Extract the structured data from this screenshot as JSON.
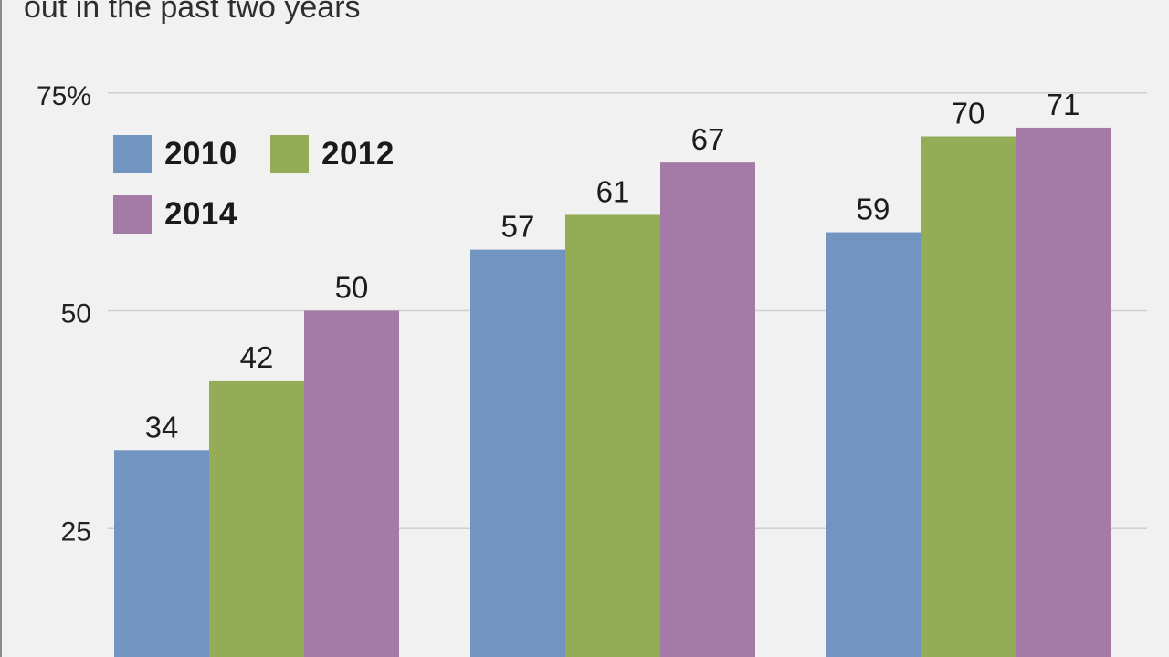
{
  "subtitle_lines": [
    "out in the past two years"
  ],
  "colors": {
    "2010": "#7194c1",
    "2012": "#93ac55",
    "2014": "#a47aa6",
    "grid": "#cfcfcf"
  },
  "legend": [
    {
      "label": "2010",
      "color": "#7194c1"
    },
    {
      "label": "2012",
      "color": "#93ac55"
    },
    {
      "label": "2014",
      "color": "#a47aa6"
    }
  ],
  "chart_data": {
    "type": "bar",
    "title": "",
    "xlabel": "",
    "ylabel": "",
    "ylim": [
      0,
      75
    ],
    "y_ticks": [
      {
        "value": 25,
        "label": "25"
      },
      {
        "value": 50,
        "label": "50"
      },
      {
        "value": 75,
        "label": "75%"
      }
    ],
    "grid": true,
    "legend_position": "top-left",
    "categories": [
      "",
      "",
      ""
    ],
    "series": [
      {
        "name": "2010",
        "color": "#7194c1",
        "values": [
          34,
          57,
          59
        ]
      },
      {
        "name": "2012",
        "color": "#93ac55",
        "values": [
          42,
          61,
          70
        ]
      },
      {
        "name": "2014",
        "color": "#a47aa6",
        "values": [
          50,
          67,
          71
        ]
      }
    ]
  }
}
